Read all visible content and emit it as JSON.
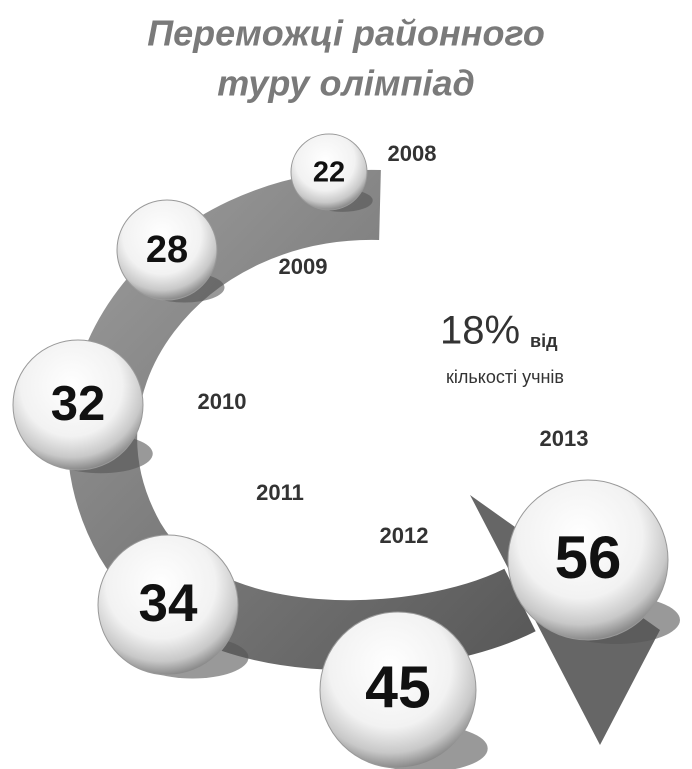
{
  "title": [
    "Переможці районного",
    "туру олімпіад"
  ],
  "nodes": [
    {
      "year": "2008",
      "value": 22
    },
    {
      "year": "2009",
      "value": 28
    },
    {
      "year": "2010",
      "value": 32
    },
    {
      "year": "2011",
      "value": 34
    },
    {
      "year": "2012",
      "value": 45
    },
    {
      "year": "2013",
      "value": 56
    }
  ],
  "note": {
    "share": "18%",
    "from": "від",
    "of": "кількості учнів"
  }
}
